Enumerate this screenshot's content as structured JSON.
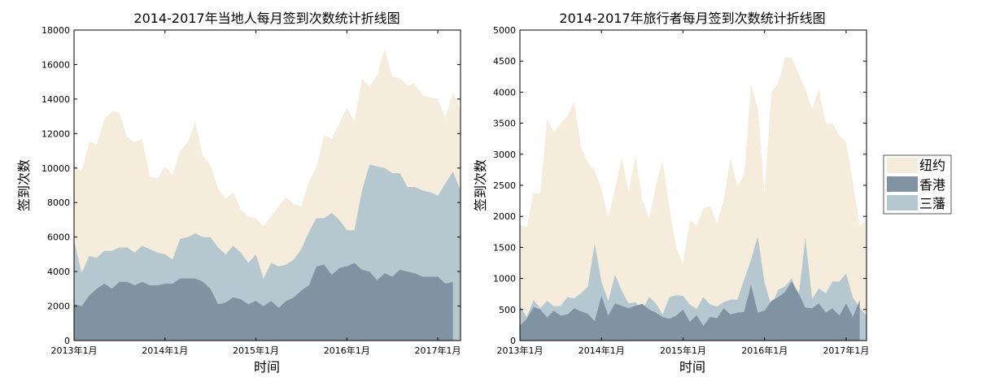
{
  "series_colors": {
    "纽约": "#f6ecdc",
    "香港": "#7f93a3",
    "三藩": "#b5c8cf"
  },
  "chart_data": [
    {
      "type": "area",
      "title": "2014-2017年当地人每月签到次数统计折线图",
      "xlabel": "时间",
      "ylabel": "签到次数",
      "x_ticks": [
        "2013年1月",
        "2014年1月",
        "2015年1月",
        "2016年1月",
        "2017年1月"
      ],
      "y_ticks": [
        0,
        2000,
        4000,
        6000,
        8000,
        10000,
        12000,
        14000,
        16000,
        18000
      ],
      "ylim": [
        0,
        18000
      ],
      "x_start": "2013-01",
      "x_end": "2017-04",
      "grid": false,
      "legend": "right",
      "series": [
        {
          "name": "纽约",
          "x": [
            "2013-01",
            "2013-02",
            "2013-03",
            "2013-04",
            "2013-05",
            "2013-06",
            "2013-07",
            "2013-08",
            "2013-09",
            "2013-10",
            "2013-11",
            "2013-12",
            "2014-01",
            "2014-02",
            "2014-03",
            "2014-04",
            "2014-05",
            "2014-06",
            "2014-07",
            "2014-08",
            "2014-09",
            "2014-10",
            "2014-11",
            "2014-12",
            "2015-01",
            "2015-02",
            "2015-03",
            "2015-04",
            "2015-05",
            "2015-06",
            "2015-07",
            "2015-08",
            "2015-09",
            "2015-10",
            "2015-11",
            "2015-12",
            "2016-01",
            "2016-02",
            "2016-03",
            "2016-04",
            "2016-05",
            "2016-06",
            "2016-07",
            "2016-08",
            "2016-09",
            "2016-10",
            "2016-11",
            "2016-12",
            "2017-01",
            "2017-02",
            "2017-03",
            "2017-04"
          ],
          "values": [
            10200,
            9800,
            11500,
            11400,
            12800,
            13300,
            13200,
            11800,
            11500,
            11700,
            9500,
            9400,
            10100,
            9600,
            11000,
            11500,
            12700,
            10700,
            10200,
            8800,
            8200,
            8600,
            7600,
            7200,
            7100,
            6600,
            7200,
            7800,
            8300,
            7900,
            7800,
            9200,
            10100,
            11900,
            11700,
            12600,
            13500,
            12700,
            15200,
            14700,
            15400,
            16900,
            15300,
            15200,
            14800,
            14900,
            14200,
            14100,
            14000,
            12900,
            14400,
            13400
          ]
        },
        {
          "name": "三藩",
          "x": [
            "2013-01",
            "2013-02",
            "2013-03",
            "2013-04",
            "2013-05",
            "2013-06",
            "2013-07",
            "2013-08",
            "2013-09",
            "2013-10",
            "2013-11",
            "2013-12",
            "2014-01",
            "2014-02",
            "2014-03",
            "2014-04",
            "2014-05",
            "2014-06",
            "2014-07",
            "2014-08",
            "2014-09",
            "2014-10",
            "2014-11",
            "2014-12",
            "2015-01",
            "2015-02",
            "2015-03",
            "2015-04",
            "2015-05",
            "2015-06",
            "2015-07",
            "2015-08",
            "2015-09",
            "2015-10",
            "2015-11",
            "2015-12",
            "2016-01",
            "2016-02",
            "2016-03",
            "2016-04",
            "2016-05",
            "2016-06",
            "2016-07",
            "2016-08",
            "2016-09",
            "2016-10",
            "2016-11",
            "2016-12",
            "2017-01",
            "2017-02",
            "2017-03",
            "2017-04"
          ],
          "values": [
            5800,
            3900,
            4900,
            4800,
            5200,
            5200,
            5400,
            5400,
            5100,
            5500,
            5300,
            5100,
            5000,
            4700,
            5900,
            6000,
            6200,
            6000,
            6000,
            5400,
            5000,
            5500,
            5100,
            4500,
            5000,
            3600,
            4500,
            4300,
            4400,
            4700,
            5300,
            6300,
            7100,
            7100,
            7400,
            7000,
            6400,
            6400,
            8700,
            10200,
            10100,
            10000,
            9700,
            9700,
            8900,
            8900,
            8700,
            8600,
            8400,
            9100,
            9800,
            8700
          ]
        },
        {
          "name": "香港",
          "x": [
            "2013-01",
            "2013-02",
            "2013-03",
            "2013-04",
            "2013-05",
            "2013-06",
            "2013-07",
            "2013-08",
            "2013-09",
            "2013-10",
            "2013-11",
            "2013-12",
            "2014-01",
            "2014-02",
            "2014-03",
            "2014-04",
            "2014-05",
            "2014-06",
            "2014-07",
            "2014-08",
            "2014-09",
            "2014-10",
            "2014-11",
            "2014-12",
            "2015-01",
            "2015-02",
            "2015-03",
            "2015-04",
            "2015-05",
            "2015-06",
            "2015-07",
            "2015-08",
            "2015-09",
            "2015-10",
            "2015-11",
            "2015-12",
            "2016-01",
            "2016-02",
            "2016-03",
            "2016-04",
            "2016-05",
            "2016-06",
            "2016-07",
            "2016-08",
            "2016-09",
            "2016-10",
            "2016-11",
            "2016-12",
            "2017-01",
            "2017-02",
            "2017-03"
          ],
          "values": [
            2100,
            2000,
            2600,
            3000,
            3300,
            3000,
            3400,
            3400,
            3200,
            3400,
            3200,
            3200,
            3300,
            3300,
            3600,
            3600,
            3600,
            3400,
            3000,
            2100,
            2200,
            2500,
            2400,
            2100,
            2300,
            2000,
            2300,
            1900,
            2300,
            2500,
            2900,
            3200,
            4300,
            4400,
            3800,
            4200,
            4300,
            4500,
            4100,
            4000,
            3500,
            3900,
            3700,
            4100,
            4000,
            3900,
            3700,
            3700,
            3700,
            3300,
            3400
          ]
        }
      ]
    },
    {
      "type": "area",
      "title": "2014-2017年旅行者每月签到次数统计折线图",
      "xlabel": "时间",
      "ylabel": "签到次数",
      "x_ticks": [
        "2013年1月",
        "2014年1月",
        "2015年1月",
        "2016年1月",
        "2017年1月"
      ],
      "y_ticks": [
        0,
        500,
        1000,
        1500,
        2000,
        2500,
        3000,
        3500,
        4000,
        4500,
        5000
      ],
      "ylim": [
        0,
        5000
      ],
      "x_start": "2013-01",
      "x_end": "2017-04",
      "grid": false,
      "legend": "right",
      "series": [
        {
          "name": "纽约",
          "x": [
            "2013-01",
            "2013-02",
            "2013-03",
            "2013-04",
            "2013-05",
            "2013-06",
            "2013-07",
            "2013-08",
            "2013-09",
            "2013-10",
            "2013-11",
            "2013-12",
            "2014-01",
            "2014-02",
            "2014-03",
            "2014-04",
            "2014-05",
            "2014-06",
            "2014-07",
            "2014-08",
            "2014-09",
            "2014-10",
            "2014-11",
            "2014-12",
            "2015-01",
            "2015-02",
            "2015-03",
            "2015-04",
            "2015-05",
            "2015-06",
            "2015-07",
            "2015-08",
            "2015-09",
            "2015-10",
            "2015-11",
            "2015-12",
            "2016-01",
            "2016-02",
            "2016-03",
            "2016-04",
            "2016-05",
            "2016-06",
            "2016-07",
            "2016-08",
            "2016-09",
            "2016-10",
            "2016-11",
            "2016-12",
            "2017-01",
            "2017-02",
            "2017-03",
            "2017-04"
          ],
          "values": [
            1870,
            1820,
            2370,
            2370,
            3580,
            3350,
            3500,
            3620,
            3850,
            3110,
            2870,
            2740,
            2440,
            1980,
            2450,
            2950,
            2380,
            2990,
            2270,
            1960,
            2500,
            2910,
            2130,
            1500,
            1230,
            1940,
            1850,
            2130,
            2170,
            1900,
            2260,
            2950,
            2480,
            2680,
            4120,
            3750,
            2400,
            4000,
            4140,
            4570,
            4550,
            4300,
            4050,
            3720,
            4050,
            3500,
            3500,
            3300,
            3200,
            2550,
            1850,
            1950
          ]
        },
        {
          "name": "三藩",
          "x": [
            "2013-01",
            "2013-02",
            "2013-03",
            "2013-04",
            "2013-05",
            "2013-06",
            "2013-07",
            "2013-08",
            "2013-09",
            "2013-10",
            "2013-11",
            "2013-12",
            "2014-01",
            "2014-02",
            "2014-03",
            "2014-04",
            "2014-05",
            "2014-06",
            "2014-07",
            "2014-08",
            "2014-09",
            "2014-10",
            "2014-11",
            "2014-12",
            "2015-01",
            "2015-02",
            "2015-03",
            "2015-04",
            "2015-05",
            "2015-06",
            "2015-07",
            "2015-08",
            "2015-09",
            "2015-10",
            "2015-11",
            "2015-12",
            "2016-01",
            "2016-02",
            "2016-03",
            "2016-04",
            "2016-05",
            "2016-06",
            "2016-07",
            "2016-08",
            "2016-09",
            "2016-10",
            "2016-11",
            "2016-12",
            "2017-01",
            "2017-02",
            "2017-03",
            "2017-04"
          ],
          "values": [
            550,
            380,
            650,
            520,
            640,
            550,
            560,
            700,
            680,
            760,
            870,
            1570,
            950,
            640,
            1060,
            800,
            600,
            620,
            480,
            700,
            600,
            420,
            700,
            730,
            720,
            580,
            510,
            700,
            580,
            550,
            620,
            660,
            660,
            980,
            1300,
            1680,
            930,
            560,
            820,
            870,
            1000,
            700,
            1650,
            670,
            840,
            760,
            950,
            950,
            1080,
            690,
            530,
            400
          ]
        },
        {
          "name": "香港",
          "x": [
            "2013-01",
            "2013-02",
            "2013-03",
            "2013-04",
            "2013-05",
            "2013-06",
            "2013-07",
            "2013-08",
            "2013-09",
            "2013-10",
            "2013-11",
            "2013-12",
            "2014-01",
            "2014-02",
            "2014-03",
            "2014-04",
            "2014-05",
            "2014-06",
            "2014-07",
            "2014-08",
            "2014-09",
            "2014-10",
            "2014-11",
            "2014-12",
            "2015-01",
            "2015-02",
            "2015-03",
            "2015-04",
            "2015-05",
            "2015-06",
            "2015-07",
            "2015-08",
            "2015-09",
            "2015-10",
            "2015-11",
            "2015-12",
            "2016-01",
            "2016-02",
            "2016-03",
            "2016-04",
            "2016-05",
            "2016-06",
            "2016-07",
            "2016-08",
            "2016-09",
            "2016-10",
            "2016-11",
            "2016-12",
            "2017-01",
            "2017-02",
            "2017-03"
          ],
          "values": [
            240,
            350,
            540,
            500,
            370,
            480,
            400,
            420,
            520,
            470,
            430,
            310,
            720,
            400,
            600,
            560,
            520,
            560,
            590,
            500,
            450,
            380,
            350,
            400,
            500,
            300,
            410,
            240,
            380,
            360,
            520,
            420,
            450,
            460,
            900,
            450,
            480,
            640,
            700,
            780,
            950,
            760,
            530,
            520,
            600,
            450,
            520,
            400,
            600,
            380,
            650
          ]
        }
      ]
    }
  ]
}
